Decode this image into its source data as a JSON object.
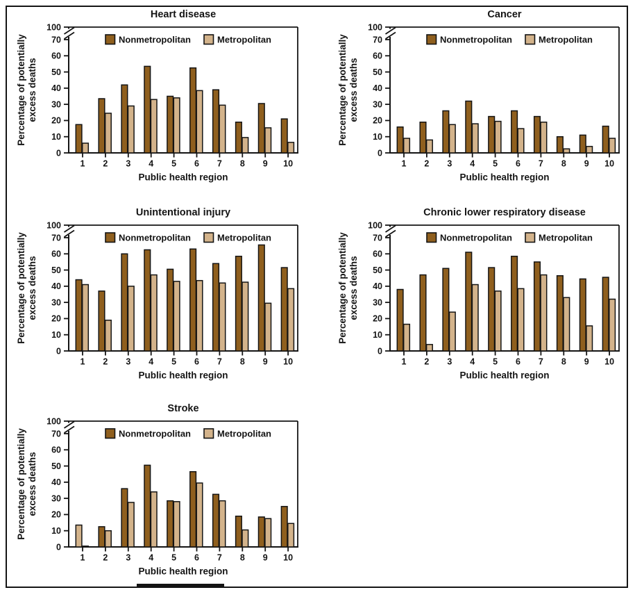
{
  "figure": {
    "background": "#ffffff",
    "border_color": "#141414"
  },
  "colors": {
    "nonmetropolitan": "#8f5f1e",
    "metropolitan": "#d3b38b",
    "bar_outline": "#141414",
    "axis": "#141414",
    "text": "#141414"
  },
  "chart_data": [
    {
      "type": "bar",
      "title": "Heart disease",
      "xlabel": "Public health region",
      "ylabel_lines": [
        "Percentage of potentially",
        "excess deaths"
      ],
      "categories": [
        "1",
        "2",
        "3",
        "4",
        "5",
        "6",
        "7",
        "8",
        "9",
        "10"
      ],
      "yticks": [
        0,
        10,
        20,
        30,
        40,
        50,
        60,
        70,
        100
      ],
      "ylim": [
        0,
        100
      ],
      "axis_break_between": [
        70,
        100
      ],
      "grid": false,
      "legend_position": "top-inside",
      "legend": [
        "Nonmetropolitan",
        "Metropolitan"
      ],
      "series": [
        {
          "name": "Nonmetropolitan",
          "color_key": "nonmetropolitan",
          "values": [
            17.5,
            33.5,
            42,
            53.5,
            35,
            52.5,
            39,
            19,
            30.5,
            21
          ]
        },
        {
          "name": "Metropolitan",
          "color_key": "metropolitan",
          "values": [
            6,
            24.5,
            29,
            33,
            34,
            38.5,
            29.5,
            9.5,
            15.5,
            6.5
          ]
        }
      ]
    },
    {
      "type": "bar",
      "title": "Cancer",
      "xlabel": "Public health region",
      "ylabel_lines": [
        "Percentage of potentially",
        "excess deaths"
      ],
      "categories": [
        "1",
        "2",
        "3",
        "4",
        "5",
        "6",
        "7",
        "8",
        "9",
        "10"
      ],
      "yticks": [
        0,
        10,
        20,
        30,
        40,
        50,
        60,
        70,
        100
      ],
      "ylim": [
        0,
        100
      ],
      "axis_break_between": [
        70,
        100
      ],
      "grid": false,
      "legend_position": "top-inside",
      "legend": [
        "Nonmetropolitan",
        "Metropolitan"
      ],
      "series": [
        {
          "name": "Nonmetropolitan",
          "color_key": "nonmetropolitan",
          "values": [
            16,
            19,
            26,
            32,
            22.5,
            26,
            22.5,
            10,
            11,
            16.5
          ]
        },
        {
          "name": "Metropolitan",
          "color_key": "metropolitan",
          "values": [
            9,
            8,
            17.5,
            18,
            19.5,
            15,
            19,
            2.5,
            4,
            9
          ]
        }
      ]
    },
    {
      "type": "bar",
      "title": "Unintentional injury",
      "xlabel": "Public health region",
      "ylabel_lines": [
        "Percentage of potentially",
        "excess deaths"
      ],
      "categories": [
        "1",
        "2",
        "3",
        "4",
        "5",
        "6",
        "7",
        "8",
        "9",
        "10"
      ],
      "yticks": [
        0,
        10,
        20,
        30,
        40,
        50,
        60,
        70,
        100
      ],
      "ylim": [
        0,
        100
      ],
      "axis_break_between": [
        70,
        100
      ],
      "grid": false,
      "legend_position": "top-inside",
      "legend": [
        "Nonmetropolitan",
        "Metropolitan"
      ],
      "series": [
        {
          "name": "Nonmetropolitan",
          "color_key": "nonmetropolitan",
          "values": [
            44,
            37,
            60,
            62.5,
            50.5,
            63,
            54,
            58.5,
            65.5,
            51.5
          ]
        },
        {
          "name": "Metropolitan",
          "color_key": "metropolitan",
          "values": [
            41,
            19,
            40,
            47,
            43,
            43.5,
            42,
            42.5,
            29.5,
            38.5
          ]
        }
      ]
    },
    {
      "type": "bar",
      "title": "Chronic lower respiratory disease",
      "xlabel": "Public health region",
      "ylabel_lines": [
        "Percentage of potentially",
        "excess deaths"
      ],
      "categories": [
        "1",
        "2",
        "3",
        "4",
        "5",
        "6",
        "7",
        "8",
        "9",
        "10"
      ],
      "yticks": [
        0,
        10,
        20,
        30,
        40,
        50,
        60,
        70,
        100
      ],
      "ylim": [
        0,
        100
      ],
      "axis_break_between": [
        70,
        100
      ],
      "grid": false,
      "legend_position": "top-inside",
      "legend": [
        "Nonmetropolitan",
        "Metropolitan"
      ],
      "series": [
        {
          "name": "Nonmetropolitan",
          "color_key": "nonmetropolitan",
          "values": [
            38,
            47,
            51,
            61,
            51.5,
            58.5,
            55,
            46.5,
            44.5,
            45.5
          ]
        },
        {
          "name": "Metropolitan",
          "color_key": "metropolitan",
          "values": [
            16.5,
            4,
            24,
            41,
            37,
            38.5,
            47,
            33,
            15.5,
            32
          ]
        }
      ]
    },
    {
      "type": "bar",
      "title": "Stroke",
      "xlabel": "Public health region",
      "ylabel_lines": [
        "Percentage of potentially",
        "excess deaths"
      ],
      "categories": [
        "1",
        "2",
        "3",
        "4",
        "5",
        "6",
        "7",
        "8",
        "9",
        "10"
      ],
      "yticks": [
        0,
        10,
        20,
        30,
        40,
        50,
        60,
        70,
        100
      ],
      "ylim": [
        0,
        100
      ],
      "axis_break_between": [
        70,
        100
      ],
      "grid": false,
      "legend_position": "top-inside",
      "legend": [
        "Nonmetropolitan",
        "Metropolitan"
      ],
      "series": [
        {
          "name": "Nonmetropolitan",
          "color_key": "nonmetropolitan",
          "values": [
            13.5,
            12.5,
            36,
            50.5,
            28.5,
            46.5,
            32.5,
            19,
            18.5,
            25
          ]
        },
        {
          "name": "Metropolitan",
          "color_key": "metropolitan",
          "values": [
            0.5,
            10,
            27.5,
            34,
            28,
            39.5,
            28.5,
            10.5,
            17.5,
            14.5
          ]
        }
      ],
      "fill_overrides": [
        {
          "series_index": 0,
          "point_index": 0,
          "color_key": "metropolitan"
        }
      ]
    }
  ]
}
